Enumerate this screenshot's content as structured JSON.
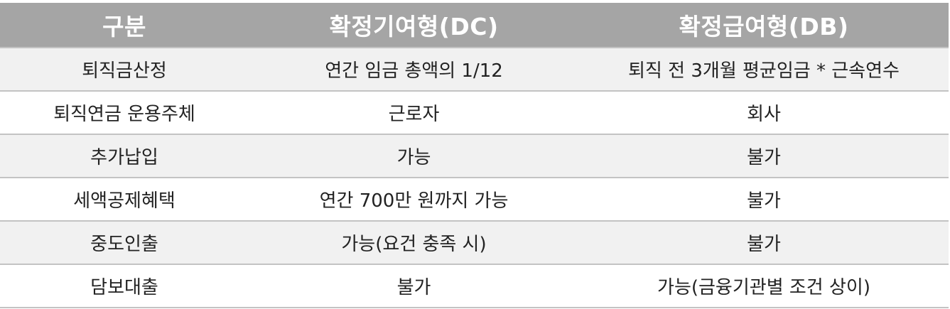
{
  "table": {
    "headers": [
      "구분",
      "확정기여형(DC)",
      "확정급여형(DB)"
    ],
    "rows": [
      [
        "퇴직금산정",
        "연간 임금 총액의 1/12",
        "퇴직 전 3개월 평균임금 * 근속연수"
      ],
      [
        "퇴직연금 운용주체",
        "근로자",
        "회사"
      ],
      [
        "추가납입",
        "가능",
        "불가"
      ],
      [
        "세액공제혜택",
        "연간 700만 원까지 가능",
        "불가"
      ],
      [
        "중도인출",
        "가능(요건 충족 시)",
        "불가"
      ],
      [
        "담보대출",
        "불가",
        "가능(금융기관별 조건 상이)"
      ]
    ],
    "colors": {
      "header_bg": "#a5a5a5",
      "header_text": "#ffffff",
      "row_alt_bg": "#f1f1f1",
      "row_bg": "#ffffff",
      "border": "#c3c3c3"
    }
  }
}
